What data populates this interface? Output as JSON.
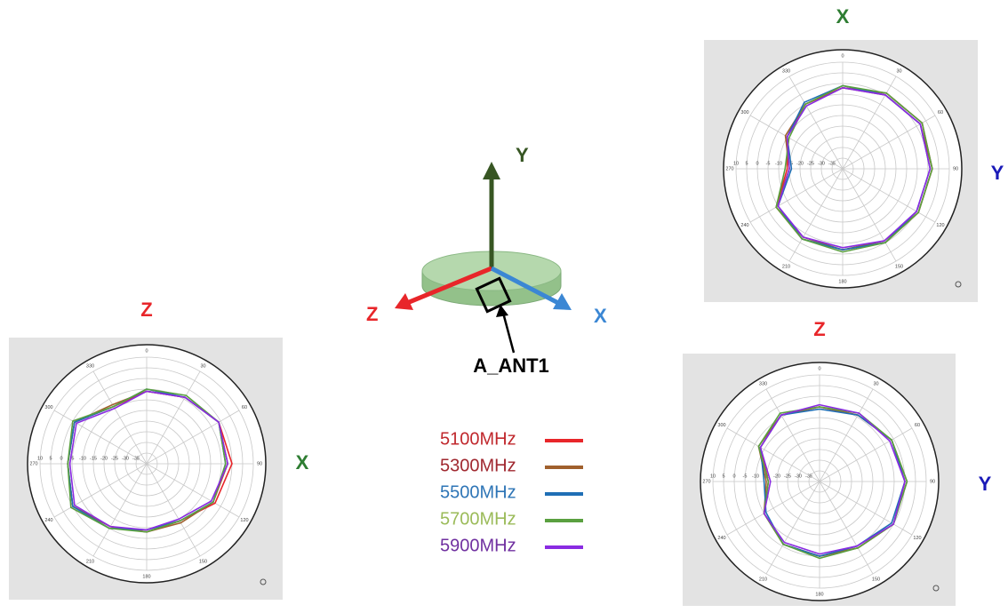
{
  "chart_data": [
    {
      "type": "polar",
      "title": "X",
      "side_label": "Y",
      "x": [
        0,
        30,
        60,
        90,
        120,
        150,
        180,
        210,
        240,
        270,
        300,
        330
      ],
      "thetaticks": [
        0,
        30,
        60,
        90,
        120,
        150,
        180,
        210,
        240,
        270,
        300,
        330
      ],
      "rlim": [
        -40,
        10
      ],
      "rticks": [
        10,
        5,
        0,
        -5,
        -10,
        -15,
        -20,
        -25,
        -30,
        -35
      ],
      "grid": true,
      "series": [
        {
          "name": "5100MHz",
          "color": "#e8262a",
          "values": [
            -2,
            1,
            3,
            2,
            1,
            0,
            -2,
            -2,
            -4,
            -14,
            -10,
            -5
          ]
        },
        {
          "name": "5300MHz",
          "color": "#a0602d",
          "values": [
            -2,
            0,
            2,
            2,
            1,
            -1,
            -2,
            -3,
            -4,
            -15,
            -9,
            -5
          ]
        },
        {
          "name": "5500MHz",
          "color": "#1f6fb5",
          "values": [
            -1,
            0,
            2,
            1,
            0,
            0,
            -2,
            -2,
            -5,
            -16,
            -10,
            -4
          ]
        },
        {
          "name": "5700MHz",
          "color": "#5aa040",
          "values": [
            -1,
            1,
            3,
            2,
            1,
            0,
            -1,
            -2,
            -4,
            -13,
            -11,
            -5
          ]
        },
        {
          "name": "5900MHz",
          "color": "#8a2be2",
          "values": [
            -2,
            0,
            2,
            1,
            0,
            -1,
            -3,
            -3,
            -5,
            -15,
            -10,
            -6
          ]
        }
      ]
    },
    {
      "type": "polar",
      "title": "Z",
      "side_label": "X",
      "x": [
        0,
        30,
        60,
        90,
        120,
        150,
        180,
        210,
        240,
        270,
        300,
        330
      ],
      "thetaticks": [
        0,
        30,
        60,
        90,
        120,
        150,
        180,
        210,
        240,
        270,
        300,
        330
      ],
      "rlim": [
        -40,
        10
      ],
      "rticks": [
        10,
        5,
        0,
        -5,
        -10,
        -15,
        -20,
        -25,
        -30,
        -35
      ],
      "grid": true,
      "series": [
        {
          "name": "5100MHz",
          "color": "#e8262a",
          "values": [
            -6,
            -4,
            -1,
            0,
            -3,
            -9,
            -8,
            -6,
            0,
            -3,
            -1,
            -9
          ]
        },
        {
          "name": "5300MHz",
          "color": "#a0602d",
          "values": [
            -6,
            -4,
            -1,
            -2,
            -4,
            -8,
            -8,
            -6,
            0,
            -3,
            -1,
            -8
          ]
        },
        {
          "name": "5500MHz",
          "color": "#1f6fb5",
          "values": [
            -5,
            -4,
            -1,
            -3,
            -4,
            -9,
            -9,
            -5,
            0,
            -3,
            -1,
            -9
          ]
        },
        {
          "name": "5700MHz",
          "color": "#5aa040",
          "values": [
            -5,
            -3,
            -1,
            -3,
            -4,
            -9,
            -8,
            -5,
            1,
            -3,
            0,
            -9
          ]
        },
        {
          "name": "5900MHz",
          "color": "#8a2be2",
          "values": [
            -6,
            -4,
            -1,
            -2,
            -5,
            -10,
            -9,
            -6,
            -1,
            -4,
            -2,
            -10
          ]
        }
      ]
    },
    {
      "type": "polar",
      "title": "Z",
      "side_label": "Y",
      "x": [
        0,
        30,
        60,
        90,
        120,
        150,
        180,
        210,
        240,
        270,
        300,
        330
      ],
      "thetaticks": [
        0,
        30,
        60,
        90,
        120,
        150,
        180,
        210,
        240,
        270,
        300,
        330
      ],
      "rlim": [
        -40,
        10
      ],
      "rticks": [
        10,
        5,
        0,
        -5,
        -10,
        -15,
        -20,
        -25,
        -30,
        -35
      ],
      "grid": true,
      "series": [
        {
          "name": "5100MHz",
          "color": "#e8262a",
          "values": [
            -5,
            -4,
            -1,
            0,
            0,
            -4,
            -5,
            -6,
            -10,
            -16,
            -8,
            -4
          ]
        },
        {
          "name": "5300MHz",
          "color": "#a0602d",
          "values": [
            -5,
            -4,
            -1,
            1,
            0,
            -4,
            -5,
            -6,
            -10,
            -15,
            -7,
            -4
          ]
        },
        {
          "name": "5500MHz",
          "color": "#1f6fb5",
          "values": [
            -6,
            -4,
            -1,
            0,
            -1,
            -5,
            -5,
            -6,
            -11,
            -14,
            -8,
            -4
          ]
        },
        {
          "name": "5700MHz",
          "color": "#5aa040",
          "values": [
            -5,
            -3,
            -1,
            1,
            0,
            -4,
            -4,
            -6,
            -10,
            -16,
            -7,
            -3
          ]
        },
        {
          "name": "5900MHz",
          "color": "#8a2be2",
          "values": [
            -4,
            -3,
            -2,
            0,
            0,
            -5,
            -6,
            -7,
            -10,
            -17,
            -8,
            -4
          ]
        }
      ]
    }
  ],
  "diagram": {
    "axis_y": "Y",
    "axis_z": "Z",
    "axis_x": "X",
    "antenna": "A_ANT1"
  }
}
